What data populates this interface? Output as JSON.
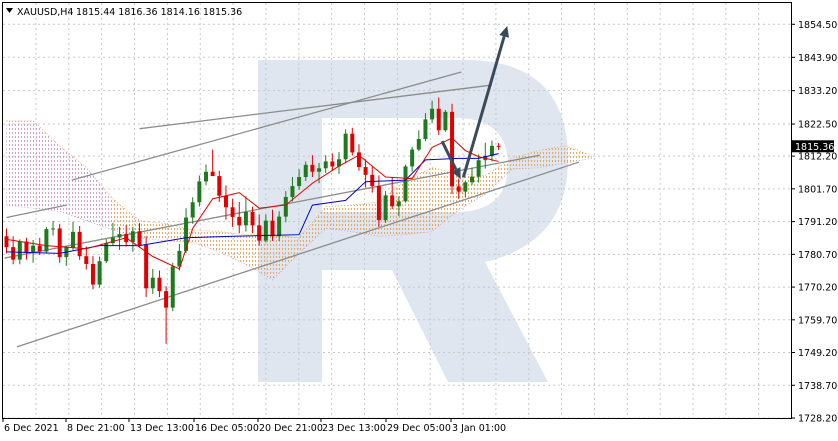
{
  "header": {
    "symbol_tf": "XAUUSD,H4",
    "ohlc": "1815.44 1816.36 1814.16 1815.36",
    "triangle_icon": "triangle-down-icon"
  },
  "price_label": "1815.36",
  "chart_data": {
    "type": "candlestick",
    "title": "XAUUSD,H4",
    "xlabel": "",
    "ylabel": "",
    "ylim": [
      1728.2,
      1861.0
    ],
    "yticks": [
      "1854.50",
      "1843.90",
      "1833.20",
      "1822.50",
      "1812.20",
      "1801.70",
      "1791.20",
      "1780.70",
      "1770.20",
      "1759.70",
      "1749.20",
      "1738.70",
      "1728.20"
    ],
    "xticks": [
      "6 Dec 2021",
      "8 Dec 21:00",
      "13 Dec 13:00",
      "16 Dec 05:00",
      "20 Dec 21:00",
      "23 Dec 13:00",
      "29 Dec 05:00",
      "3 Jan 01:00"
    ],
    "grid": true,
    "colors": {
      "bull": "#1f7a1f",
      "bear": "#e00000",
      "tenkan": "#e00000",
      "kijun": "#0000cc",
      "cloud_a": "#e8a050",
      "cloud_b": "#c89ac8",
      "trendline": "#8c8c8c",
      "arrow": "#3a4a5a",
      "watermark": "#dfe6ef"
    },
    "candles": [
      [
        1786.5,
        1789.0,
        1781.0,
        1783.0
      ],
      [
        1783.0,
        1786.5,
        1777.5,
        1779.0
      ],
      [
        1779.0,
        1785.5,
        1777.5,
        1784.8
      ],
      [
        1784.8,
        1786.0,
        1779.0,
        1781.2
      ],
      [
        1781.2,
        1785.3,
        1778.0,
        1783.5
      ],
      [
        1783.5,
        1786.0,
        1780.5,
        1781.6
      ],
      [
        1781.6,
        1789.5,
        1780.9,
        1788.8
      ],
      [
        1788.8,
        1791.4,
        1786.7,
        1789.0
      ],
      [
        1789.0,
        1790.5,
        1778.0,
        1779.8
      ],
      [
        1779.8,
        1783.5,
        1777.0,
        1782.9
      ],
      [
        1782.9,
        1791.2,
        1782.0,
        1787.9
      ],
      [
        1787.9,
        1789.8,
        1778.9,
        1780.1
      ],
      [
        1780.1,
        1783.2,
        1775.8,
        1777.6
      ],
      [
        1777.6,
        1780.1,
        1769.5,
        1771.0
      ],
      [
        1771.0,
        1780.0,
        1770.0,
        1778.5
      ],
      [
        1778.5,
        1785.6,
        1777.9,
        1784.3
      ],
      [
        1784.3,
        1790.8,
        1783.7,
        1786.1
      ],
      [
        1786.1,
        1789.5,
        1782.1,
        1787.2
      ],
      [
        1787.2,
        1790.1,
        1783.2,
        1784.6
      ],
      [
        1784.6,
        1789.5,
        1781.5,
        1788.1
      ],
      [
        1788.1,
        1790.7,
        1782.9,
        1783.7
      ],
      [
        1783.7,
        1786.5,
        1767.0,
        1769.8
      ],
      [
        1769.8,
        1776.0,
        1768.0,
        1773.2
      ],
      [
        1773.2,
        1775.5,
        1767.0,
        1768.9
      ],
      [
        1768.9,
        1770.5,
        1752.0,
        1763.6
      ],
      [
        1763.6,
        1778.0,
        1762.5,
        1776.8
      ],
      [
        1776.8,
        1784.0,
        1775.5,
        1781.8
      ],
      [
        1781.8,
        1795.5,
        1781.1,
        1792.5
      ],
      [
        1792.5,
        1799.0,
        1790.5,
        1797.4
      ],
      [
        1797.4,
        1806.0,
        1796.0,
        1804.1
      ],
      [
        1804.1,
        1809.5,
        1802.8,
        1807.2
      ],
      [
        1807.2,
        1814.3,
        1805.8,
        1805.8
      ],
      [
        1805.8,
        1807.5,
        1797.5,
        1799.5
      ],
      [
        1799.5,
        1802.8,
        1791.8,
        1795.8
      ],
      [
        1795.8,
        1798.5,
        1789.5,
        1792.7
      ],
      [
        1792.7,
        1797.5,
        1787.5,
        1790.0
      ],
      [
        1790.0,
        1799.3,
        1788.0,
        1794.3
      ],
      [
        1794.3,
        1796.0,
        1787.5,
        1790.0
      ],
      [
        1790.0,
        1793.5,
        1783.5,
        1785.1
      ],
      [
        1785.1,
        1793.5,
        1784.5,
        1791.5
      ],
      [
        1791.5,
        1795.0,
        1785.0,
        1786.5
      ],
      [
        1786.5,
        1794.5,
        1785.0,
        1792.8
      ],
      [
        1792.8,
        1801.0,
        1791.0,
        1799.1
      ],
      [
        1799.1,
        1805.5,
        1797.7,
        1802.6
      ],
      [
        1802.6,
        1808.0,
        1801.4,
        1805.5
      ],
      [
        1805.5,
        1810.5,
        1804.2,
        1809.4
      ],
      [
        1809.4,
        1812.5,
        1805.5,
        1807.2
      ],
      [
        1807.2,
        1810.0,
        1803.5,
        1808.3
      ],
      [
        1808.3,
        1812.5,
        1806.8,
        1810.5
      ],
      [
        1810.5,
        1813.0,
        1807.5,
        1808.9
      ],
      [
        1808.9,
        1813.5,
        1806.5,
        1811.2
      ],
      [
        1811.2,
        1820.8,
        1809.9,
        1819.4
      ],
      [
        1819.4,
        1821.3,
        1812.4,
        1813.4
      ],
      [
        1813.4,
        1816.0,
        1807.5,
        1808.7
      ],
      [
        1808.7,
        1811.2,
        1802.1,
        1806.2
      ],
      [
        1806.2,
        1808.9,
        1800.5,
        1802.6
      ],
      [
        1802.6,
        1806.0,
        1789.5,
        1791.7
      ],
      [
        1791.7,
        1801.0,
        1790.8,
        1799.6
      ],
      [
        1799.6,
        1805.5,
        1795.2,
        1796.1
      ],
      [
        1796.1,
        1799.3,
        1793.0,
        1797.7
      ],
      [
        1797.7,
        1809.5,
        1797.3,
        1808.9
      ],
      [
        1808.9,
        1815.2,
        1807.2,
        1814.3
      ],
      [
        1814.3,
        1820.5,
        1813.8,
        1817.7
      ],
      [
        1817.7,
        1826.0,
        1817.0,
        1824.0
      ],
      [
        1824.0,
        1830.0,
        1822.8,
        1827.4
      ],
      [
        1827.4,
        1831.0,
        1819.0,
        1820.5
      ],
      [
        1820.5,
        1827.0,
        1820.0,
        1826.4
      ],
      [
        1826.4,
        1829.0,
        1800.0,
        1802.5
      ],
      [
        1802.5,
        1805.0,
        1798.5,
        1800.8
      ],
      [
        1800.8,
        1804.2,
        1799.0,
        1803.8
      ],
      [
        1803.8,
        1808.5,
        1803.0,
        1805.6
      ],
      [
        1805.6,
        1812.8,
        1803.7,
        1810.9
      ],
      [
        1810.9,
        1816.5,
        1808.2,
        1812.3
      ],
      [
        1812.3,
        1817.2,
        1810.5,
        1815.5
      ],
      [
        1815.5,
        1816.4,
        1814.2,
        1815.4
      ]
    ],
    "tenkan": [
      [
        0,
        1785.5
      ],
      [
        6,
        1783.5
      ],
      [
        12,
        1782.5
      ],
      [
        18,
        1786.0
      ],
      [
        22,
        1780.0
      ],
      [
        26,
        1776.0
      ],
      [
        28,
        1789.0
      ],
      [
        31,
        1798.5
      ],
      [
        35,
        1800.5
      ],
      [
        38,
        1795.5
      ],
      [
        42,
        1796.5
      ],
      [
        46,
        1803.5
      ],
      [
        50,
        1809.0
      ],
      [
        53,
        1812.5
      ],
      [
        57,
        1805.5
      ],
      [
        61,
        1805.0
      ],
      [
        64,
        1815.0
      ],
      [
        67,
        1818.0
      ],
      [
        69,
        1814.0
      ],
      [
        71,
        1812.0
      ],
      [
        74,
        1810.5
      ]
    ],
    "kijun": [
      [
        0,
        1781.5
      ],
      [
        8,
        1781.0
      ],
      [
        14,
        1783.5
      ],
      [
        20,
        1783.5
      ],
      [
        27,
        1786.0
      ],
      [
        34,
        1786.5
      ],
      [
        44,
        1787.0
      ],
      [
        46,
        1796.5
      ],
      [
        51,
        1798.0
      ],
      [
        54,
        1804.0
      ],
      [
        60,
        1804.5
      ],
      [
        63,
        1811.0
      ],
      [
        68,
        1811.5
      ],
      [
        71,
        1811.5
      ],
      [
        74,
        1813.0
      ]
    ],
    "cloud": [
      [
        0,
        1796.5,
        1823.5
      ],
      [
        4,
        1795.5,
        1823.5
      ],
      [
        8,
        1794.5,
        1815.5
      ],
      [
        12,
        1791.5,
        1808.5
      ],
      [
        16,
        1788.5,
        1798.5
      ],
      [
        20,
        1786.0,
        1791.5
      ],
      [
        24,
        1785.0,
        1790.5
      ],
      [
        28,
        1784.5,
        1788.5
      ],
      [
        32,
        1781.5,
        1788.0
      ],
      [
        36,
        1777.5,
        1787.0
      ],
      [
        40,
        1772.5,
        1787.0
      ],
      [
        44,
        1781.0,
        1786.0
      ],
      [
        48,
        1789.0,
        1796.0
      ],
      [
        52,
        1788.0,
        1796.5
      ],
      [
        56,
        1786.5,
        1797.5
      ],
      [
        60,
        1787.0,
        1804.5
      ],
      [
        64,
        1788.0,
        1808.5
      ],
      [
        68,
        1795.0,
        1806.5
      ],
      [
        72,
        1800.0,
        1806.0
      ],
      [
        76,
        1808.0,
        1811.5
      ],
      [
        80,
        1808.5,
        1814.0
      ],
      [
        84,
        1810.0,
        1815.5
      ],
      [
        88,
        1811.5,
        1812.5
      ]
    ],
    "trendlines": [
      {
        "x1": 1.55,
        "y1": 1751.0,
        "x2": 86.1,
        "y2": 1810.3
      },
      {
        "x1": 9.8,
        "y1": 1804.5,
        "x2": 68.4,
        "y2": 1839.2
      },
      {
        "x1": 20.0,
        "y1": 1821.0,
        "x2": 73.0,
        "y2": 1835.0
      },
      {
        "x1": -0.3,
        "y1": 1779.5,
        "x2": 80.2,
        "y2": 1812.5
      },
      {
        "x1": 0.0,
        "y1": 1792.5,
        "x2": 9.0,
        "y2": 1796.5
      }
    ],
    "arrows": [
      {
        "x1": 65.5,
        "y1": 1817.0,
        "x2": 68.3,
        "y2": 1804.8
      },
      {
        "x1": 68.7,
        "y1": 1805.4,
        "x2": 75.3,
        "y2": 1854.0
      }
    ]
  }
}
